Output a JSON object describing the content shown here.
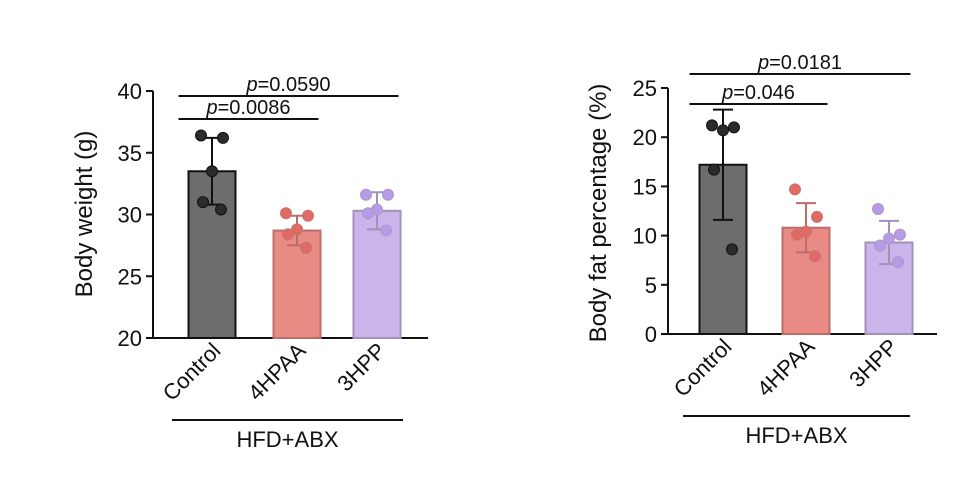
{
  "chart_data": [
    {
      "type": "bar",
      "ylabel": "Body weight (g)",
      "ylim": [
        20,
        40
      ],
      "yticks": [
        20,
        25,
        30,
        35,
        40
      ],
      "categories": [
        "Control",
        "4HPAA",
        "3HPP"
      ],
      "group_label": "HFD+ABX",
      "values": [
        33.5,
        28.7,
        30.3
      ],
      "sd": [
        2.7,
        1.2,
        1.5
      ],
      "colors": [
        "#6d6d6d",
        "#e98a84",
        "#c9b5ea"
      ],
      "points": [
        [
          36.4,
          36.2,
          33.5,
          31.0,
          30.4
        ],
        [
          30.1,
          29.9,
          28.8,
          28.4,
          27.3
        ],
        [
          31.6,
          31.6,
          30.4,
          30.1,
          28.7
        ]
      ],
      "comparisons": [
        {
          "from": 0,
          "to": 1,
          "p_symbol": "p",
          "p_text": "=0.0086"
        },
        {
          "from": 0,
          "to": 2,
          "p_symbol": "p",
          "p_text": "=0.0590"
        }
      ]
    },
    {
      "type": "bar",
      "ylabel": "Body fat percentage (%)",
      "ylim": [
        0,
        25
      ],
      "yticks": [
        0,
        5,
        10,
        15,
        20,
        25
      ],
      "categories": [
        "Control",
        "4HPAA",
        "3HPP"
      ],
      "group_label": "HFD+ABX",
      "values": [
        17.2,
        10.8,
        9.3
      ],
      "sd": [
        5.6,
        2.5,
        2.2
      ],
      "colors": [
        "#6d6d6d",
        "#e98a84",
        "#c9b5ea"
      ],
      "points": [
        [
          21.2,
          21.0,
          20.7,
          16.7,
          8.6
        ],
        [
          14.7,
          11.9,
          10.4,
          10.1,
          7.9
        ],
        [
          12.7,
          10.1,
          9.7,
          9.0,
          7.3
        ]
      ],
      "comparisons": [
        {
          "from": 0,
          "to": 1,
          "p_symbol": "p",
          "p_text": "=0.046"
        },
        {
          "from": 0,
          "to": 2,
          "p_symbol": "p",
          "p_text": "=0.0181"
        }
      ]
    }
  ]
}
